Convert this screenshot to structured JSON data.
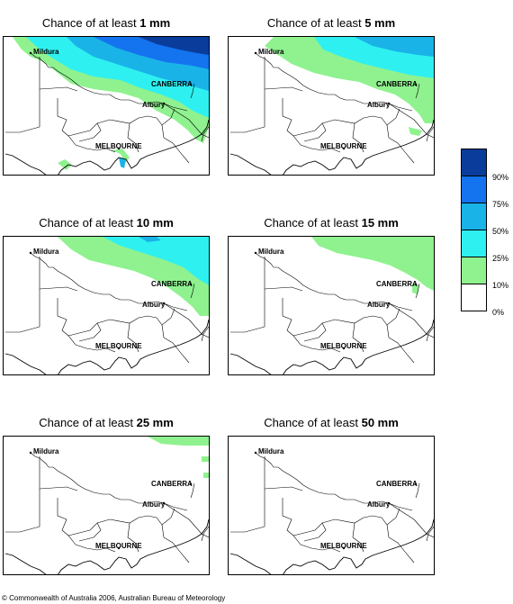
{
  "panels": [
    {
      "title_prefix": "Chance of at least ",
      "title_value": "1 mm",
      "level": 0
    },
    {
      "title_prefix": "Chance of at least ",
      "title_value": "5 mm",
      "level": 1
    },
    {
      "title_prefix": "Chance of at least ",
      "title_value": "10 mm",
      "level": 2
    },
    {
      "title_prefix": "Chance of at least ",
      "title_value": "15 mm",
      "level": 3
    },
    {
      "title_prefix": "Chance of at least ",
      "title_value": "25 mm",
      "level": 4
    },
    {
      "title_prefix": "Chance of at least ",
      "title_value": "50 mm",
      "level": 5
    }
  ],
  "places": {
    "mildura": "Mildura",
    "canberra": "CANBERRA",
    "albury": "Albury",
    "melbourne": "MELBOURNE"
  },
  "legend": {
    "bands": [
      {
        "label": "90%",
        "color": "#0a3c9c"
      },
      {
        "label": "75%",
        "color": "#1473ee"
      },
      {
        "label": "50%",
        "color": "#19b3e8"
      },
      {
        "label": "25%",
        "color": "#2ff0f0"
      },
      {
        "label": "10%",
        "color": "#8ff28f"
      },
      {
        "label": "0%",
        "color": "#ffffff"
      }
    ]
  },
  "copyright": "© Commonwealth of Australia 2006, Australian Bureau of Meteorology"
}
